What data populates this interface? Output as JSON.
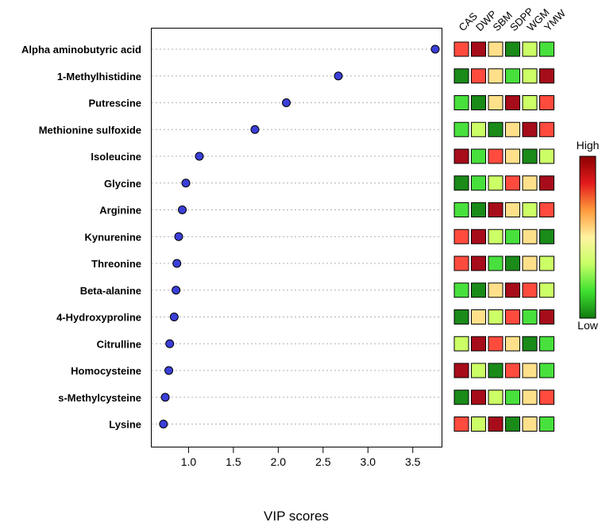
{
  "chart_data": {
    "type": "scatter",
    "xlabel": "VIP scores",
    "ylabel": "",
    "xlim": [
      0.58,
      3.83
    ],
    "x_ticks": [
      "1.0",
      "1.5",
      "2.0",
      "2.5",
      "3.0",
      "3.5"
    ],
    "x_tick_values": [
      1.0,
      1.5,
      2.0,
      2.5,
      3.0,
      3.5
    ],
    "point_color": "#3b3fd8",
    "grid_line_color": "#b0b0b0",
    "categories": [
      "Alpha aminobutyric acid",
      "1-Methylhistidine",
      "Putrescine",
      "Methionine sulfoxide",
      "Isoleucine",
      "Glycine",
      "Arginine",
      "Kynurenine",
      "Threonine",
      "Beta-alanine",
      "4-Hydroxyproline",
      "Citrulline",
      "Homocysteine",
      "s-Methylcysteine",
      "Lysine"
    ],
    "values": [
      3.75,
      2.67,
      2.09,
      1.74,
      1.12,
      0.97,
      0.93,
      0.89,
      0.87,
      0.86,
      0.84,
      0.79,
      0.78,
      0.74,
      0.72
    ],
    "heatmap": {
      "groups": [
        "CAS",
        "DWP",
        "SBM",
        "SDPP",
        "WGM",
        "YMW"
      ],
      "scale_min": 1,
      "scale_max": 7,
      "levels": [
        [
          6,
          7,
          4,
          1,
          3,
          2
        ],
        [
          1,
          6,
          4,
          2,
          3,
          7
        ],
        [
          2,
          1,
          4,
          7,
          3,
          6
        ],
        [
          2,
          3,
          1,
          4,
          7,
          6
        ],
        [
          7,
          2,
          6,
          4,
          1,
          3
        ],
        [
          1,
          2,
          3,
          6,
          4,
          7
        ],
        [
          2,
          1,
          7,
          4,
          3,
          6
        ],
        [
          6,
          7,
          3,
          2,
          4,
          1
        ],
        [
          6,
          7,
          2,
          1,
          4,
          3
        ],
        [
          2,
          1,
          4,
          7,
          6,
          3
        ],
        [
          1,
          4,
          3,
          6,
          2,
          7
        ],
        [
          3,
          7,
          6,
          4,
          1,
          2
        ],
        [
          7,
          3,
          1,
          6,
          4,
          2
        ],
        [
          1,
          7,
          3,
          2,
          4,
          6
        ],
        [
          6,
          3,
          7,
          1,
          4,
          2
        ]
      ],
      "palette": [
        "#1a8a18",
        "#48e03c",
        "#ccff66",
        "#ffe08a",
        "#ffbc5e",
        "#ff4b3e",
        "#a60c1a"
      ]
    },
    "legend": {
      "high_label": "High",
      "low_label": "Low",
      "gradient": [
        "#8b0000",
        "#e31a1c",
        "#ff9a3c",
        "#fff3a0",
        "#c6ff66",
        "#3ee030",
        "#127a10"
      ]
    }
  }
}
